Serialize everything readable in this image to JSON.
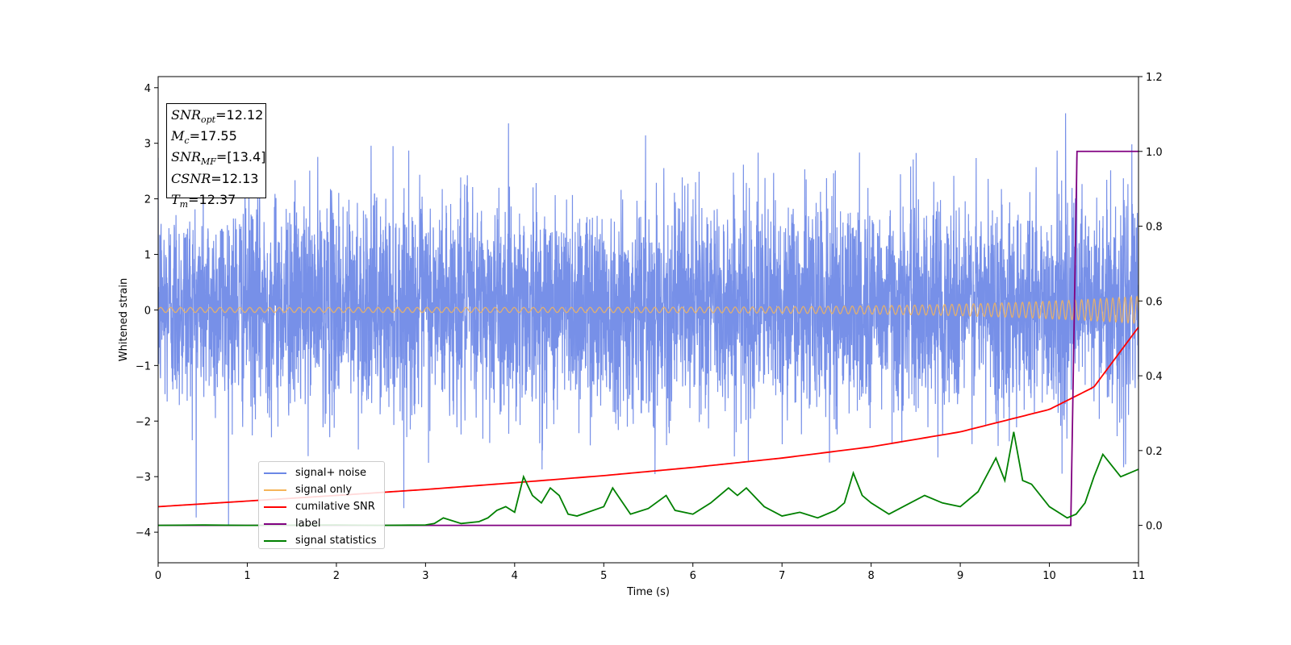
{
  "chart_data": {
    "type": "line",
    "xlabel": "Time (s)",
    "ylabel": "Whitened strain",
    "xlim": [
      0,
      11
    ],
    "ylim": [
      -4.55,
      4.2
    ],
    "y2lim": [
      -0.1,
      1.2
    ],
    "x_ticks": [
      "0",
      "1",
      "2",
      "3",
      "4",
      "5",
      "6",
      "7",
      "8",
      "9",
      "10",
      "11"
    ],
    "y_ticks": [
      "−4",
      "−3",
      "−2",
      "−1",
      "0",
      "1",
      "2",
      "3",
      "4"
    ],
    "y2_ticks": [
      "0.0",
      "0.2",
      "0.4",
      "0.6",
      "0.8",
      "1.0",
      "1.2"
    ],
    "grid": false,
    "legend_position": "lower-left",
    "series": [
      {
        "name": "signal+ noise",
        "axis": "left",
        "color": "#6b87e6",
        "description": "white noise, amplitude range ~[-4.1, 3.8]"
      },
      {
        "name": "signal only",
        "axis": "left",
        "color": "#f5b55a",
        "description": "chirp, amplitude ~0.05 growing to ~0.25 at t=11"
      },
      {
        "name": "cumilative SNR",
        "axis": "right",
        "color": "#ff0000",
        "x": [
          0,
          1,
          2,
          3,
          4,
          5,
          6,
          7,
          8,
          9,
          10,
          10.5,
          11
        ],
        "values": [
          0.05,
          0.065,
          0.08,
          0.096,
          0.114,
          0.133,
          0.155,
          0.18,
          0.21,
          0.25,
          0.31,
          0.37,
          0.53
        ]
      },
      {
        "name": "label",
        "axis": "right",
        "color": "#800080",
        "x": [
          0,
          10.24,
          10.31,
          11
        ],
        "values": [
          0,
          0,
          1,
          1
        ]
      },
      {
        "name": "signal statistics",
        "axis": "right",
        "color": "#008000",
        "x": [
          0,
          0.5,
          1,
          2,
          2.5,
          3,
          3.1,
          3.2,
          3.4,
          3.6,
          3.7,
          3.8,
          3.9,
          4,
          4.1,
          4.2,
          4.3,
          4.4,
          4.5,
          4.6,
          4.7,
          5,
          5.1,
          5.2,
          5.3,
          5.5,
          5.7,
          5.8,
          6,
          6.2,
          6.4,
          6.5,
          6.6,
          6.8,
          7,
          7.2,
          7.4,
          7.6,
          7.7,
          7.8,
          7.9,
          8,
          8.2,
          8.4,
          8.6,
          8.8,
          9,
          9.2,
          9.4,
          9.5,
          9.6,
          9.7,
          9.8,
          10,
          10.2,
          10.3,
          10.4,
          10.5,
          10.6,
          10.7,
          10.8,
          10.9,
          11
        ],
        "values": [
          0,
          0.001,
          0.0,
          0.001,
          0.0,
          0.001,
          0.005,
          0.02,
          0.005,
          0.01,
          0.02,
          0.04,
          0.05,
          0.035,
          0.13,
          0.08,
          0.06,
          0.1,
          0.08,
          0.03,
          0.025,
          0.05,
          0.1,
          0.065,
          0.03,
          0.045,
          0.08,
          0.04,
          0.03,
          0.06,
          0.1,
          0.08,
          0.1,
          0.05,
          0.025,
          0.035,
          0.02,
          0.04,
          0.06,
          0.14,
          0.08,
          0.06,
          0.03,
          0.055,
          0.08,
          0.06,
          0.05,
          0.09,
          0.18,
          0.12,
          0.25,
          0.12,
          0.11,
          0.05,
          0.02,
          0.03,
          0.06,
          0.13,
          0.19,
          0.16,
          0.13,
          0.14,
          0.15
        ]
      }
    ],
    "annotation_lines": [
      {
        "math": "SNR",
        "sub": "opt",
        "rest": "=12.12"
      },
      {
        "math": "M",
        "sub": "c",
        "rest": "=17.55"
      },
      {
        "math": "SNR",
        "sub": "MF",
        "rest": "=[13.4]"
      },
      {
        "math": "CSNR",
        "sub": "",
        "rest": "=12.13"
      },
      {
        "math": "T",
        "sub": "m",
        "rest": "=12.37"
      }
    ]
  }
}
